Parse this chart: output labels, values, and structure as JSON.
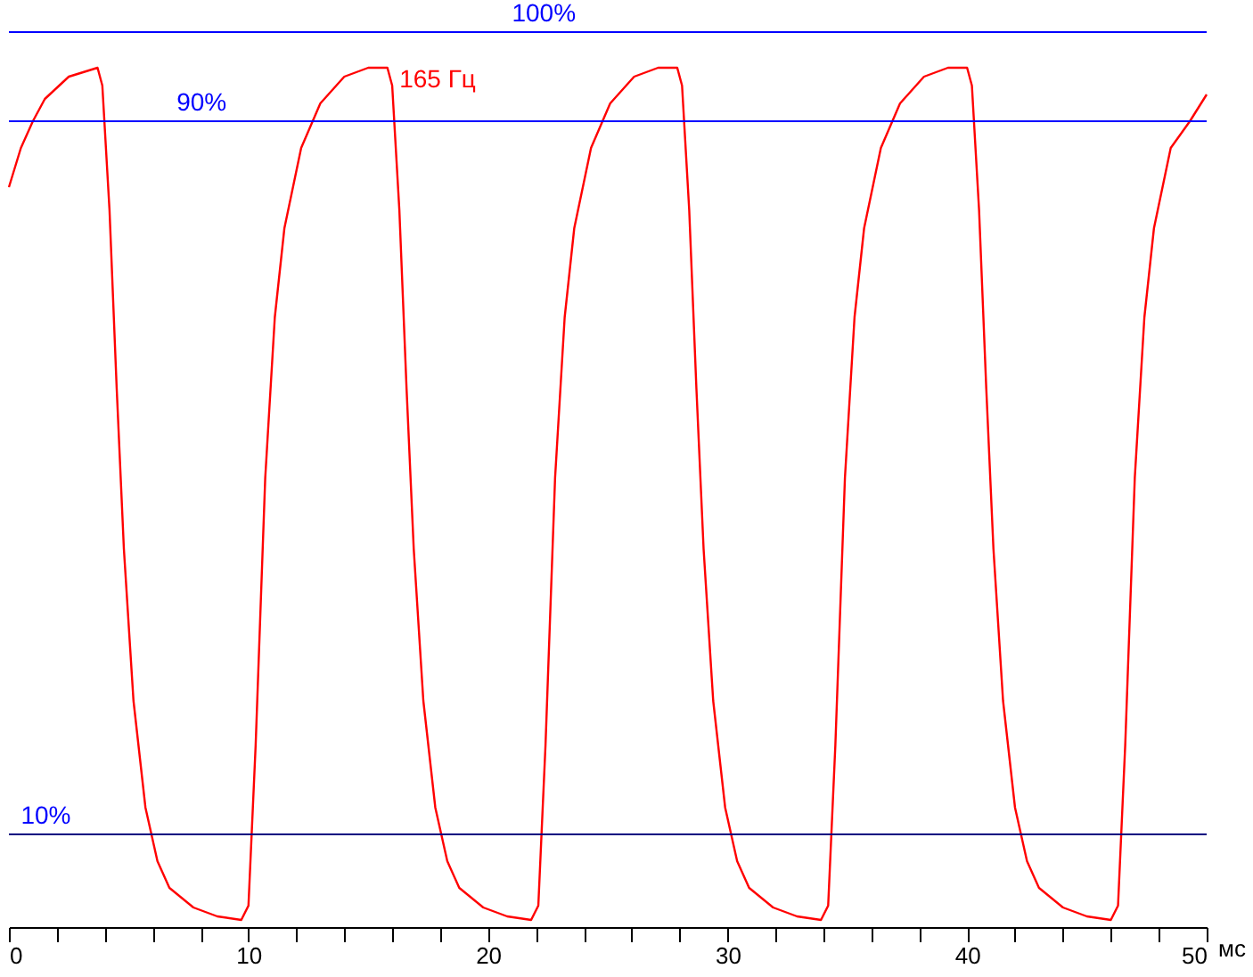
{
  "chart_data": {
    "type": "line",
    "xlabel": "мс",
    "xlim": [
      0,
      50
    ],
    "ylim": [
      -0.4,
      103.6
    ],
    "xticks": [
      0,
      {
        "value": 2,
        "label": null
      },
      {
        "value": 4,
        "label": null
      },
      {
        "value": 6,
        "label": null
      },
      {
        "value": 8,
        "label": null
      },
      10,
      {
        "value": 12,
        "label": null
      },
      {
        "value": 14,
        "label": null
      },
      {
        "value": 16,
        "label": null
      },
      {
        "value": 18,
        "label": null
      },
      20,
      {
        "value": 22,
        "label": null
      },
      {
        "value": 24,
        "label": null
      },
      {
        "value": 26,
        "label": null
      },
      {
        "value": 28,
        "label": null
      },
      30,
      {
        "value": 32,
        "label": null
      },
      {
        "value": 34,
        "label": null
      },
      {
        "value": 36,
        "label": null
      },
      {
        "value": 38,
        "label": null
      },
      40,
      {
        "value": 42,
        "label": null
      },
      {
        "value": 44,
        "label": null
      },
      {
        "value": 46,
        "label": null
      },
      {
        "value": 48,
        "label": null
      },
      50
    ],
    "tick_labels": "x",
    "grid": false,
    "marker": "none",
    "line_style": "solid",
    "series": [
      {
        "color": "#ff0000",
        "x": [
          0,
          0.5,
          1.0,
          1.5,
          2.5,
          3.7,
          3.9,
          4.2,
          4.5,
          4.8,
          5.2,
          5.7,
          6.2,
          6.7,
          7.7,
          8.7,
          9.7,
          10.0,
          10.3,
          10.7,
          11.1,
          11.5,
          12.2,
          13.0,
          14.0,
          15.0,
          15.8,
          16.0,
          16.3,
          16.6,
          16.9,
          17.3,
          17.8,
          18.3,
          18.8,
          19.8,
          20.8,
          21.8,
          22.1,
          22.4,
          22.8,
          23.2,
          23.6,
          24.3,
          25.1,
          26.1,
          27.1,
          27.9,
          28.1,
          28.4,
          28.7,
          29.0,
          29.4,
          29.9,
          30.4,
          30.9,
          31.9,
          32.9,
          33.9,
          34.2,
          34.5,
          34.9,
          35.3,
          35.7,
          36.4,
          37.2,
          38.2,
          39.2,
          40.0,
          40.2,
          40.5,
          40.8,
          41.1,
          41.5,
          42.0,
          42.5,
          43.0,
          44.0,
          45.0,
          46.0,
          46.3,
          46.6,
          47.0,
          47.4,
          47.8,
          48.5,
          49.3,
          50.0
        ],
        "values": [
          82.6,
          87,
          90,
          92.5,
          95,
          96,
          94,
          80,
          60,
          42,
          25,
          13,
          7,
          4,
          1.8,
          0.8,
          0.4,
          2,
          20,
          50,
          68,
          78,
          87,
          92,
          95,
          96,
          96,
          94,
          80,
          60,
          42,
          25,
          13,
          7,
          4,
          1.8,
          0.8,
          0.4,
          2,
          20,
          50,
          68,
          78,
          87,
          92,
          95,
          96,
          96,
          94,
          80,
          60,
          42,
          25,
          13,
          7,
          4,
          1.8,
          0.8,
          0.4,
          2,
          20,
          50,
          68,
          78,
          87,
          92,
          95,
          96,
          96,
          94,
          80,
          60,
          42,
          25,
          13,
          7,
          4,
          1.8,
          0.8,
          0.4,
          2,
          20,
          50,
          68,
          78,
          87,
          90,
          93
        ]
      }
    ],
    "ref_lines": [
      {
        "axis": "y",
        "value": 100,
        "label": "100%",
        "color": "#0000ff"
      },
      {
        "axis": "y",
        "value": 90,
        "label": "90%",
        "color": "#0000ff"
      },
      {
        "axis": "y",
        "value": 10,
        "label": "10%",
        "color": "#000080"
      }
    ],
    "annotations": [
      "165 Гц"
    ]
  }
}
